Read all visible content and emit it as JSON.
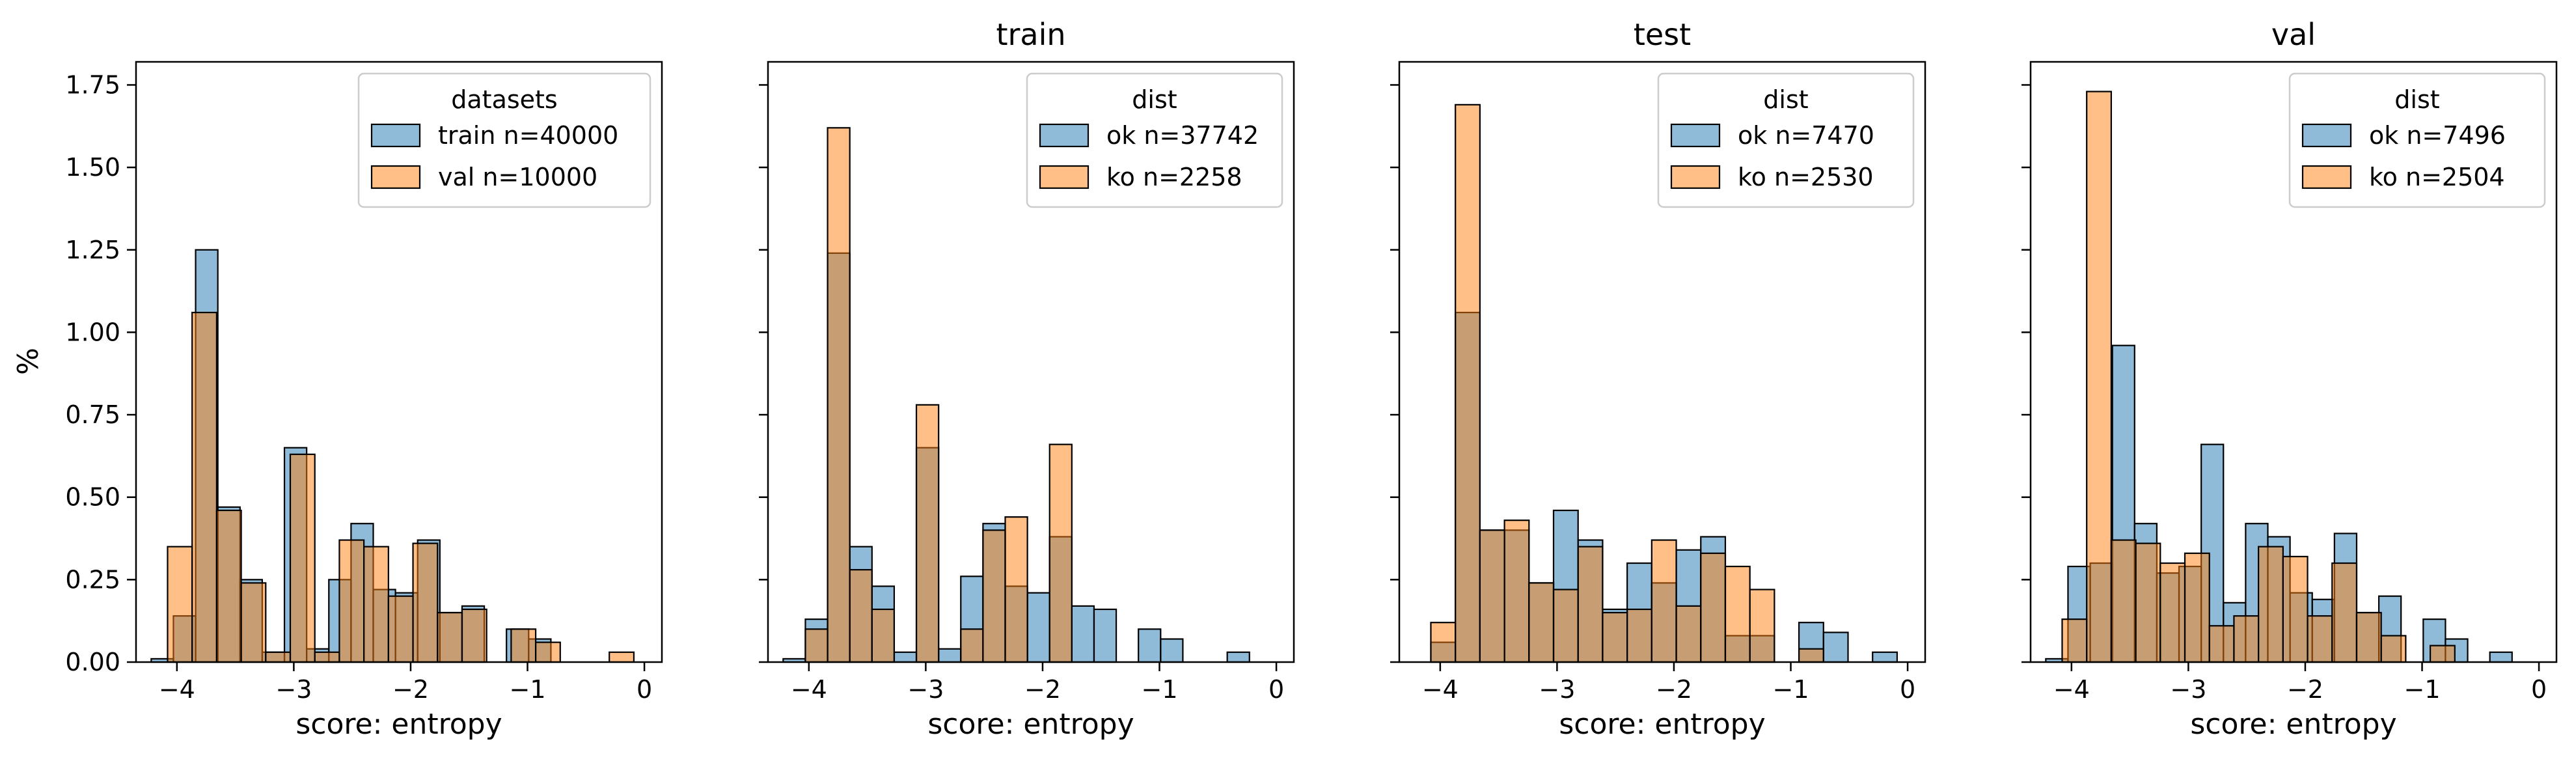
{
  "colors": {
    "blue": "#1f77b4",
    "orange": "#ff7f0e",
    "edge": "#000000"
  },
  "shared_ylabel": "%",
  "chart_data": [
    {
      "type": "histogram",
      "title": "",
      "xlabel": "score: entropy",
      "ylabel": "%",
      "xlim": [
        -4.35,
        0.15
      ],
      "ylim": [
        0,
        1.82
      ],
      "xticks": [
        "−4",
        "−3",
        "−2",
        "−1",
        "0"
      ],
      "xtick_values": [
        -4,
        -3,
        -2,
        -1,
        0
      ],
      "yticks": [
        "0.00",
        "0.25",
        "0.50",
        "0.75",
        "1.00",
        "1.25",
        "1.50",
        "1.75"
      ],
      "ytick_values": [
        0,
        0.25,
        0.5,
        0.75,
        1.0,
        1.25,
        1.5,
        1.75
      ],
      "legend": {
        "title": "datasets",
        "position": "upper right",
        "entries": [
          "train n=40000",
          "val n=10000"
        ]
      },
      "series": [
        {
          "name": "train n=40000",
          "color": "blue",
          "bin_edges": [
            -4.22,
            -4.03,
            -3.84,
            -3.65,
            -3.46,
            -3.27,
            -3.08,
            -2.89,
            -2.7,
            -2.51,
            -2.32,
            -2.13,
            -1.94,
            -1.75,
            -1.56,
            -1.37,
            -1.18,
            -0.99,
            -0.8,
            -0.61,
            -0.42,
            -0.23,
            -0.04
          ],
          "values": [
            0.01,
            0.14,
            1.25,
            0.47,
            0.25,
            0.03,
            0.65,
            0.04,
            0.25,
            0.42,
            0.22,
            0.21,
            0.37,
            0.15,
            0.17,
            0.0,
            0.1,
            0.07,
            0.0,
            0.0,
            0.0,
            0.0
          ]
        },
        {
          "name": "val n=10000",
          "color": "orange",
          "bin_edges": [
            -4.08,
            -3.87,
            -3.66,
            -3.45,
            -3.24,
            -3.03,
            -2.82,
            -2.61,
            -2.4,
            -2.19,
            -1.98,
            -1.77,
            -1.56,
            -1.35,
            -1.14,
            -0.93,
            -0.72,
            -0.51,
            -0.3,
            -0.09
          ],
          "values": [
            0.35,
            1.06,
            0.46,
            0.24,
            0.03,
            0.63,
            0.03,
            0.37,
            0.35,
            0.2,
            0.36,
            0.15,
            0.16,
            0.0,
            0.1,
            0.06,
            0.0,
            0.0,
            0.03
          ]
        }
      ]
    },
    {
      "type": "histogram",
      "title": "train",
      "xlabel": "score: entropy",
      "ylabel": "",
      "xlim": [
        -4.35,
        0.15
      ],
      "ylim": [
        0,
        1.82
      ],
      "xticks": [
        "−4",
        "−3",
        "−2",
        "−1",
        "0"
      ],
      "xtick_values": [
        -4,
        -3,
        -2,
        -1,
        0
      ],
      "yticks": [],
      "ytick_values": [
        0,
        0.25,
        0.5,
        0.75,
        1.0,
        1.25,
        1.5,
        1.75
      ],
      "legend": {
        "title": "dist",
        "position": "upper right",
        "entries": [
          "ok n=37742",
          "ko n=2258"
        ]
      },
      "series": [
        {
          "name": "ok n=37742",
          "color": "blue",
          "bin_edges": [
            -4.22,
            -4.03,
            -3.84,
            -3.65,
            -3.46,
            -3.27,
            -3.08,
            -2.89,
            -2.7,
            -2.51,
            -2.32,
            -2.13,
            -1.94,
            -1.75,
            -1.56,
            -1.37,
            -1.18,
            -0.99,
            -0.8,
            -0.61,
            -0.42,
            -0.23,
            -0.04
          ],
          "values": [
            0.01,
            0.13,
            1.24,
            0.35,
            0.23,
            0.03,
            0.65,
            0.04,
            0.26,
            0.42,
            0.23,
            0.21,
            0.38,
            0.17,
            0.16,
            0.0,
            0.1,
            0.07,
            0.0,
            0.0,
            0.03,
            0.0
          ]
        },
        {
          "name": "ko n=2258",
          "color": "orange",
          "bin_edges": [
            -4.03,
            -3.84,
            -3.65,
            -3.46,
            -3.27,
            -3.08,
            -2.89,
            -2.7,
            -2.51,
            -2.32,
            -2.13,
            -1.94,
            -1.75,
            -1.56
          ],
          "values": [
            0.1,
            1.62,
            0.28,
            0.16,
            0.0,
            0.78,
            0.0,
            0.1,
            0.4,
            0.44,
            0.0,
            0.66,
            0.0
          ]
        }
      ]
    },
    {
      "type": "histogram",
      "title": "test",
      "xlabel": "score: entropy",
      "ylabel": "",
      "xlim": [
        -4.35,
        0.15
      ],
      "ylim": [
        0,
        1.82
      ],
      "xticks": [
        "−4",
        "−3",
        "−2",
        "−1",
        "0"
      ],
      "xtick_values": [
        -4,
        -3,
        -2,
        -1,
        0
      ],
      "yticks": [],
      "ytick_values": [
        0,
        0.25,
        0.5,
        0.75,
        1.0,
        1.25,
        1.5,
        1.75
      ],
      "legend": {
        "title": "dist",
        "position": "upper right",
        "entries": [
          "ok n=7470",
          "ko n=2530"
        ]
      },
      "series": [
        {
          "name": "ok n=7470",
          "color": "blue",
          "bin_edges": [
            -4.08,
            -3.87,
            -3.66,
            -3.45,
            -3.24,
            -3.03,
            -2.82,
            -2.61,
            -2.4,
            -2.19,
            -1.98,
            -1.77,
            -1.56,
            -1.35,
            -1.14,
            -0.93,
            -0.72,
            -0.51,
            -0.3,
            -0.09
          ],
          "values": [
            0.06,
            1.06,
            0.4,
            0.4,
            0.24,
            0.46,
            0.37,
            0.16,
            0.3,
            0.24,
            0.34,
            0.38,
            0.08,
            0.08,
            0.0,
            0.12,
            0.09,
            0.0,
            0.03
          ]
        },
        {
          "name": "ko n=2530",
          "color": "orange",
          "bin_edges": [
            -4.08,
            -3.87,
            -3.66,
            -3.45,
            -3.24,
            -3.03,
            -2.82,
            -2.61,
            -2.4,
            -2.19,
            -1.98,
            -1.77,
            -1.56,
            -1.35,
            -1.14,
            -0.93,
            -0.72,
            -0.51
          ],
          "values": [
            0.12,
            1.69,
            0.4,
            0.43,
            0.24,
            0.22,
            0.35,
            0.15,
            0.16,
            0.37,
            0.17,
            0.33,
            0.29,
            0.22,
            0.0,
            0.04,
            0.0
          ]
        }
      ]
    },
    {
      "type": "histogram",
      "title": "val",
      "xlabel": "score: entropy",
      "ylabel": "",
      "xlim": [
        -4.35,
        0.15
      ],
      "ylim": [
        0,
        1.82
      ],
      "xticks": [
        "−4",
        "−3",
        "−2",
        "−1",
        "0"
      ],
      "xtick_values": [
        -4,
        -3,
        -2,
        -1,
        0
      ],
      "yticks": [],
      "ytick_values": [
        0,
        0.25,
        0.5,
        0.75,
        1.0,
        1.25,
        1.5,
        1.75
      ],
      "legend": {
        "title": "dist",
        "position": "upper right",
        "entries": [
          "ok n=7496",
          "ko n=2504"
        ]
      },
      "series": [
        {
          "name": "ok n=7496",
          "color": "blue",
          "bin_edges": [
            -4.22,
            -4.03,
            -3.84,
            -3.65,
            -3.46,
            -3.27,
            -3.08,
            -2.89,
            -2.7,
            -2.51,
            -2.32,
            -2.13,
            -1.94,
            -1.75,
            -1.56,
            -1.37,
            -1.18,
            -0.99,
            -0.8,
            -0.61,
            -0.42,
            -0.23,
            -0.04
          ],
          "values": [
            0.01,
            0.29,
            0.3,
            0.96,
            0.42,
            0.27,
            0.29,
            0.66,
            0.18,
            0.42,
            0.38,
            0.21,
            0.19,
            0.39,
            0.15,
            0.2,
            0.0,
            0.13,
            0.07,
            0.0,
            0.03,
            0.0
          ]
        },
        {
          "name": "ko n=2504",
          "color": "orange",
          "bin_edges": [
            -4.08,
            -3.87,
            -3.66,
            -3.45,
            -3.24,
            -3.03,
            -2.82,
            -2.61,
            -2.4,
            -2.19,
            -1.98,
            -1.77,
            -1.56,
            -1.35,
            -1.14,
            -0.93,
            -0.72,
            -0.51
          ],
          "values": [
            0.13,
            1.73,
            0.37,
            0.36,
            0.3,
            0.33,
            0.11,
            0.14,
            0.35,
            0.32,
            0.14,
            0.3,
            0.15,
            0.08,
            0.0,
            0.05,
            0.0
          ]
        }
      ]
    }
  ]
}
